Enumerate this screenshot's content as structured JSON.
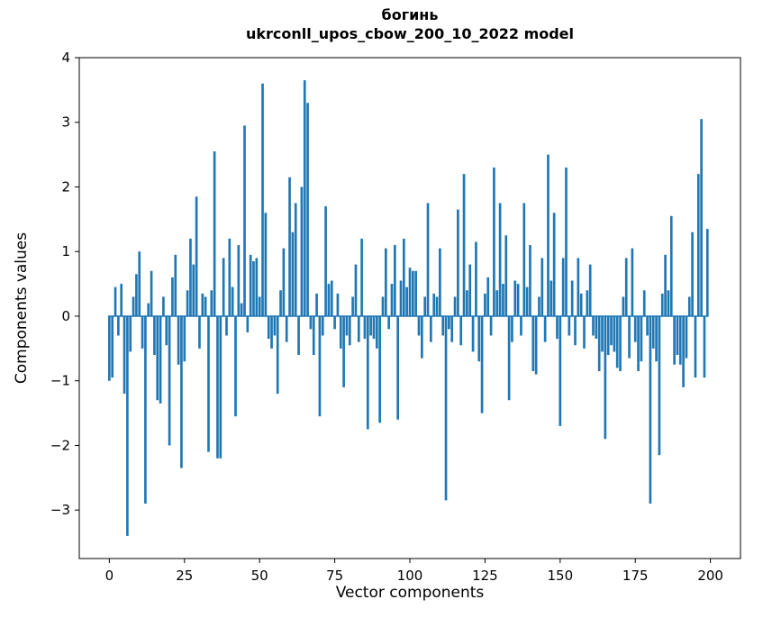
{
  "figure": {
    "title_line1": "богинь",
    "title_line2": "ukrconll_upos_cbow_200_10_2022 model",
    "xlabel": "Vector components",
    "ylabel": "Components values"
  },
  "chart_data": {
    "type": "bar",
    "title": "богинь — ukrconll_upos_cbow_200_10_2022 model",
    "xlabel": "Vector components",
    "ylabel": "Components values",
    "bar_color": "#1f77b4",
    "frame_color": "#000000",
    "xlim": [
      -10,
      210
    ],
    "ylim": [
      -3.75,
      4.0
    ],
    "xticks": [
      0,
      25,
      50,
      75,
      100,
      125,
      150,
      175,
      200
    ],
    "xticklabels": [
      "0",
      "25",
      "50",
      "75",
      "100",
      "125",
      "150",
      "175",
      "200"
    ],
    "yticks": [
      -3,
      -2,
      -1,
      0,
      1,
      2,
      3,
      4
    ],
    "yticklabels": [
      "−3",
      "−2",
      "−1",
      "0",
      "1",
      "2",
      "3",
      "4"
    ],
    "bar_width": 0.8,
    "x_start": 0,
    "values": [
      -1.0,
      -0.95,
      0.45,
      -0.3,
      0.5,
      -1.2,
      -3.4,
      -0.55,
      0.3,
      0.65,
      1.0,
      -0.5,
      -2.9,
      0.2,
      0.7,
      -0.6,
      -1.3,
      -1.35,
      0.3,
      -0.45,
      -2.0,
      0.6,
      0.95,
      -0.75,
      -2.35,
      -0.7,
      0.4,
      1.2,
      0.8,
      1.85,
      -0.5,
      0.35,
      0.3,
      -2.1,
      0.4,
      2.55,
      -2.2,
      -2.2,
      0.9,
      -0.3,
      1.2,
      0.45,
      -1.55,
      1.1,
      0.2,
      2.95,
      -0.25,
      0.95,
      0.85,
      0.9,
      0.3,
      3.6,
      1.6,
      -0.35,
      -0.5,
      -0.3,
      -1.2,
      0.4,
      1.05,
      -0.4,
      2.15,
      1.3,
      1.75,
      -0.6,
      2.0,
      3.65,
      3.3,
      -0.2,
      -0.6,
      0.35,
      -1.55,
      -0.3,
      1.7,
      0.5,
      0.55,
      -0.2,
      0.35,
      -0.5,
      -1.1,
      -0.3,
      -0.45,
      0.3,
      0.8,
      -0.4,
      1.2,
      -0.35,
      -1.75,
      -0.3,
      -0.35,
      -0.5,
      -1.65,
      0.3,
      1.05,
      -0.2,
      0.5,
      1.1,
      -1.6,
      0.55,
      1.2,
      0.45,
      0.75,
      0.7,
      0.7,
      -0.3,
      -0.65,
      0.3,
      1.75,
      -0.4,
      0.35,
      0.3,
      1.05,
      -0.3,
      -2.85,
      -0.2,
      -0.4,
      0.3,
      1.65,
      -0.45,
      2.2,
      0.4,
      0.8,
      -0.55,
      1.15,
      -0.7,
      -1.5,
      0.35,
      0.6,
      -0.3,
      2.3,
      0.4,
      1.75,
      0.5,
      1.25,
      -1.3,
      -0.4,
      0.55,
      0.5,
      -0.3,
      1.75,
      0.45,
      1.1,
      -0.85,
      -0.9,
      0.3,
      0.9,
      -0.4,
      2.5,
      0.55,
      1.6,
      -0.35,
      -1.7,
      0.9,
      2.3,
      -0.3,
      0.55,
      -0.45,
      0.9,
      0.35,
      -0.5,
      0.4,
      0.8,
      -0.3,
      -0.35,
      -0.85,
      -0.55,
      -1.9,
      -0.6,
      -0.45,
      -0.55,
      -0.8,
      -0.85,
      0.3,
      0.9,
      -0.65,
      1.05,
      -0.4,
      -0.85,
      -0.7,
      0.4,
      -0.3,
      -2.9,
      -0.5,
      -0.7,
      -2.15,
      0.35,
      0.95,
      0.4,
      1.55,
      -0.75,
      -0.6,
      -0.75,
      -1.1,
      -0.65,
      0.3,
      1.3,
      -0.95,
      2.2,
      3.05,
      -0.95,
      1.35
    ]
  }
}
